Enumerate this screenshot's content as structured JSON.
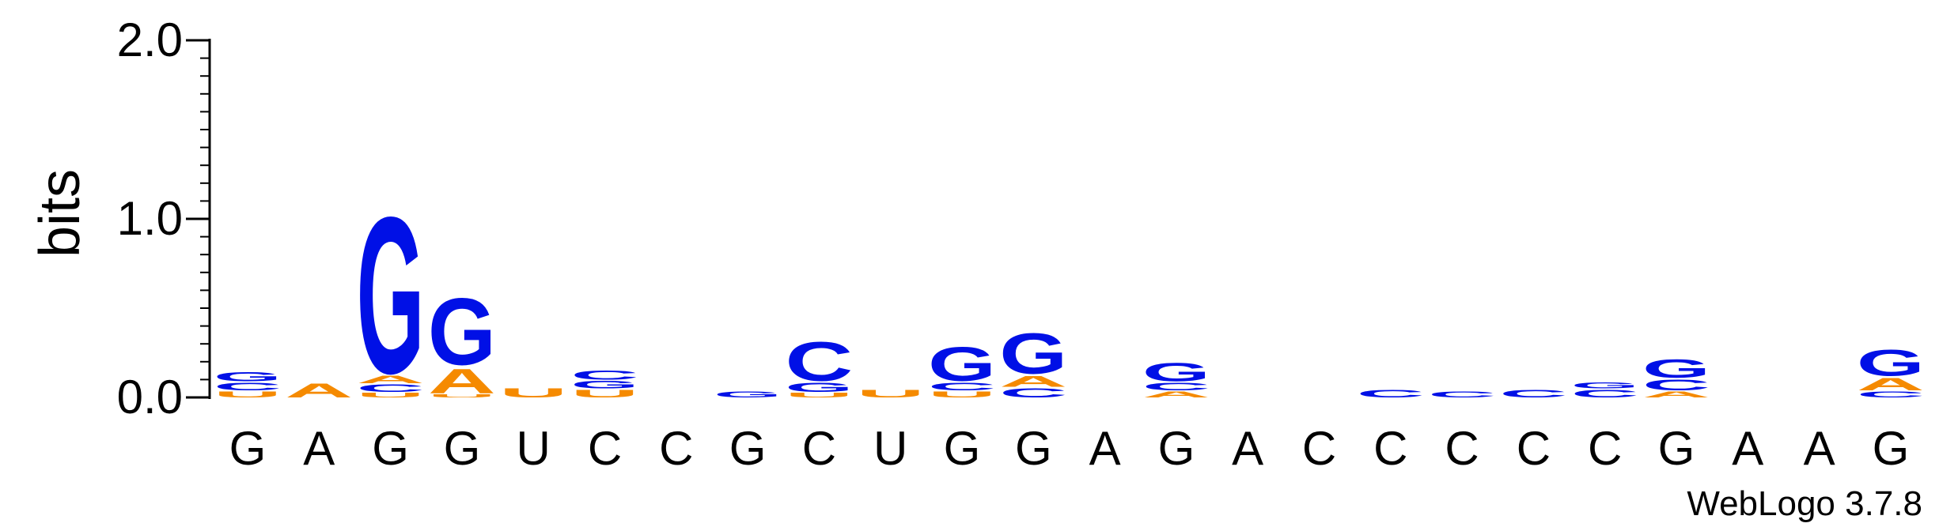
{
  "chart_data": {
    "type": "sequence-logo",
    "ylabel": "bits",
    "ylim": [
      0,
      2.0
    ],
    "yticks": [
      {
        "value": 0.0,
        "label": "0.0"
      },
      {
        "value": 1.0,
        "label": "1.0"
      },
      {
        "value": 2.0,
        "label": "2.0"
      }
    ],
    "yminor": [
      0.1,
      0.2,
      0.3,
      0.4,
      0.5,
      0.6,
      0.7,
      0.8,
      0.9,
      1.1,
      1.2,
      1.3,
      1.4,
      1.5,
      1.6,
      1.7,
      1.8,
      1.9
    ],
    "colors": {
      "A": "#f58a00",
      "U": "#f58a00",
      "G": "#0010e6",
      "C": "#0010e6"
    },
    "footer": "WebLogo 3.7.8",
    "positions": [
      {
        "label": "G",
        "letters": [
          {
            "base": "U",
            "bits": 0.04
          },
          {
            "base": "C",
            "bits": 0.05
          },
          {
            "base": "G",
            "bits": 0.06
          }
        ]
      },
      {
        "label": "A",
        "letters": [
          {
            "base": "A",
            "bits": 0.09
          }
        ]
      },
      {
        "label": "G",
        "letters": [
          {
            "base": "U",
            "bits": 0.03
          },
          {
            "base": "C",
            "bits": 0.05
          },
          {
            "base": "A",
            "bits": 0.05
          }
        ]
      },
      {
        "label": "G",
        "letters": [
          {
            "base": "U",
            "bits": 0.02
          },
          {
            "base": "A",
            "bits": 0.16
          }
        ]
      },
      {
        "label": "U",
        "letters": [
          {
            "base": "U",
            "bits": 0.06
          }
        ]
      },
      {
        "label": "C",
        "letters": [
          {
            "base": "U",
            "bits": 0.05
          },
          {
            "base": "G",
            "bits": 0.05
          },
          {
            "base": "C",
            "bits": 0.06
          }
        ]
      },
      {
        "label": "C",
        "letters": []
      },
      {
        "label": "G",
        "letters": [
          {
            "base": "G",
            "bits": 0.04
          }
        ]
      },
      {
        "label": "C",
        "letters": [
          {
            "base": "U",
            "bits": 0.03
          },
          {
            "base": "G",
            "bits": 0.06
          },
          {
            "base": "C",
            "bits": 0.25
          }
        ]
      },
      {
        "label": "U",
        "letters": [
          {
            "base": "U",
            "bits": 0.05
          }
        ]
      },
      {
        "label": "G",
        "letters": [
          {
            "base": "U",
            "bits": 0.04
          },
          {
            "base": "C",
            "bits": 0.05
          },
          {
            "base": "G",
            "bits": 0.22
          }
        ]
      },
      {
        "label": "G",
        "letters": [
          {
            "base": "C",
            "bits": 0.06
          },
          {
            "base": "A",
            "bits": 0.07
          },
          {
            "base": "G",
            "bits": 0.26
          }
        ]
      },
      {
        "label": "A",
        "letters": []
      },
      {
        "label": "G",
        "letters": [
          {
            "base": "A",
            "bits": 0.04
          },
          {
            "base": "C",
            "bits": 0.05
          },
          {
            "base": "G",
            "bits": 0.12
          }
        ]
      },
      {
        "label": "A",
        "letters": []
      },
      {
        "label": "C",
        "letters": []
      },
      {
        "label": "C",
        "letters": [
          {
            "base": "C",
            "bits": 0.05
          }
        ]
      },
      {
        "label": "C",
        "letters": [
          {
            "base": "C",
            "bits": 0.04
          }
        ]
      },
      {
        "label": "C",
        "letters": [
          {
            "base": "C",
            "bits": 0.05
          }
        ]
      },
      {
        "label": "C",
        "letters": [
          {
            "base": "C",
            "bits": 0.05
          },
          {
            "base": "G",
            "bits": 0.04
          }
        ]
      },
      {
        "label": "G",
        "letters": [
          {
            "base": "A",
            "bits": 0.04
          },
          {
            "base": "C",
            "bits": 0.07
          },
          {
            "base": "G",
            "bits": 0.12
          }
        ]
      },
      {
        "label": "A",
        "letters": []
      },
      {
        "label": "A",
        "letters": []
      },
      {
        "label": "G",
        "letters": [
          {
            "base": "C",
            "bits": 0.04
          },
          {
            "base": "A",
            "bits": 0.08
          },
          {
            "base": "G",
            "bits": 0.17
          }
        ]
      }
    ],
    "highlight": [
      {
        "position": 3,
        "letters": [
          {
            "base": "G",
            "bits": 1.01
          }
        ]
      },
      {
        "position": 4,
        "letters": [
          {
            "base": "G",
            "bits": 0.43
          }
        ]
      }
    ]
  }
}
